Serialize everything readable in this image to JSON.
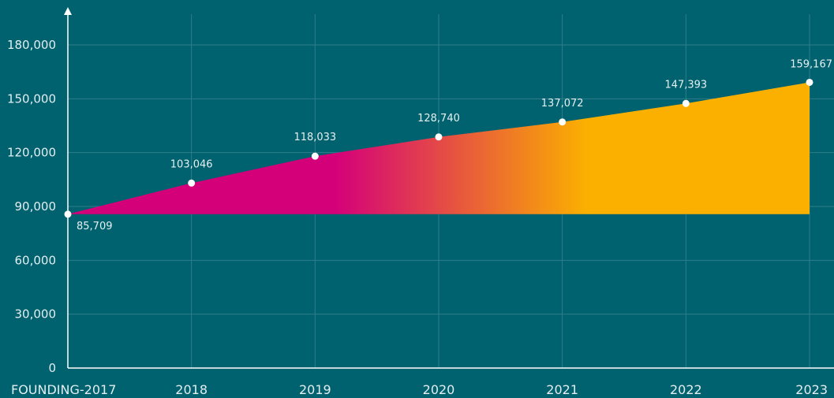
{
  "chart_data": {
    "type": "area",
    "x": [
      "FOUNDING-2017",
      "2018",
      "2019",
      "2020",
      "2021",
      "2022",
      "2023"
    ],
    "series": [
      {
        "values": [
          85709,
          103046,
          118033,
          128740,
          137072,
          147393,
          159167
        ],
        "data_labels": [
          "85,709",
          "103,046",
          "118,033",
          "128,740",
          "137,072",
          "147,393",
          "159,167"
        ]
      }
    ],
    "yticks": [
      "0",
      "30,000",
      "60,000",
      "90,000",
      "120,000",
      "150,000",
      "180,000"
    ],
    "ylim": [
      0,
      180000
    ],
    "area_baseline": 85709,
    "grid": true,
    "colors": {
      "background": "#00616f",
      "start": "#d4007a",
      "end": "#fbb000",
      "grid": "#2e7e8a",
      "axis": "#ffffff",
      "marker": "#ffffff"
    }
  }
}
